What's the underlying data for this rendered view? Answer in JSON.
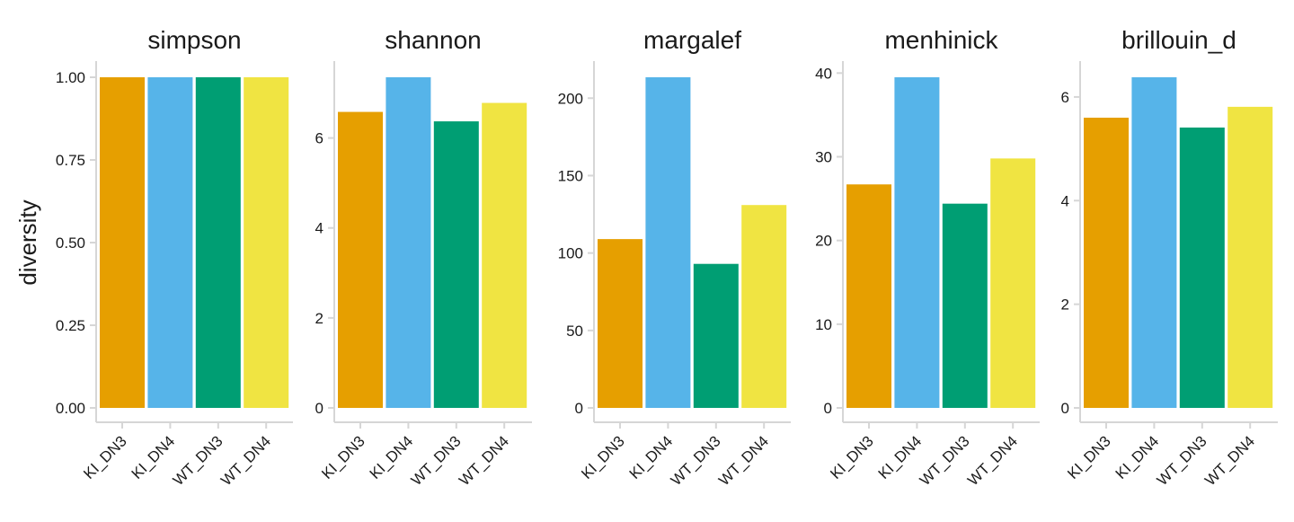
{
  "chart_data": {
    "type": "bar",
    "ylabel": "diversity",
    "categories": [
      "KI_DN3",
      "KI_DN4",
      "WT_DN3",
      "WT_DN4"
    ],
    "colors": [
      "#E69F00",
      "#56B4E9",
      "#009E73",
      "#F0E442"
    ],
    "panels": [
      {
        "title": "simpson",
        "values": [
          1.0,
          1.0,
          1.0,
          1.0
        ],
        "ylim": [
          0,
          1.0
        ],
        "ticks": [
          0,
          0.25,
          0.5,
          0.75,
          1.0
        ],
        "tick_labels": [
          "0.00",
          "0.25",
          "0.50",
          "0.75",
          "1.00"
        ]
      },
      {
        "title": "shannon",
        "values": [
          6.58,
          7.35,
          6.37,
          6.78
        ],
        "ylim": [
          0,
          7.35
        ],
        "ticks": [
          0,
          2,
          4,
          6
        ],
        "tick_labels": [
          "0",
          "2",
          "4",
          "6"
        ]
      },
      {
        "title": "margalef",
        "values": [
          109,
          213.5,
          93,
          131
        ],
        "ylim": [
          0,
          213.5
        ],
        "ticks": [
          0,
          50,
          100,
          150,
          200
        ],
        "tick_labels": [
          "0",
          "50",
          "100",
          "150",
          "200"
        ]
      },
      {
        "title": "menhinick",
        "values": [
          26.7,
          39.5,
          24.4,
          29.8
        ],
        "ylim": [
          0,
          39.5
        ],
        "ticks": [
          0,
          10,
          20,
          30,
          40
        ],
        "tick_labels": [
          "0",
          "10",
          "20",
          "30",
          "40"
        ]
      },
      {
        "title": "brillouin_d",
        "values": [
          5.6,
          6.38,
          5.41,
          5.81
        ],
        "ylim": [
          0,
          6.38
        ],
        "ticks": [
          0,
          2,
          4,
          6
        ],
        "tick_labels": [
          "0",
          "2",
          "4",
          "6"
        ]
      }
    ]
  }
}
